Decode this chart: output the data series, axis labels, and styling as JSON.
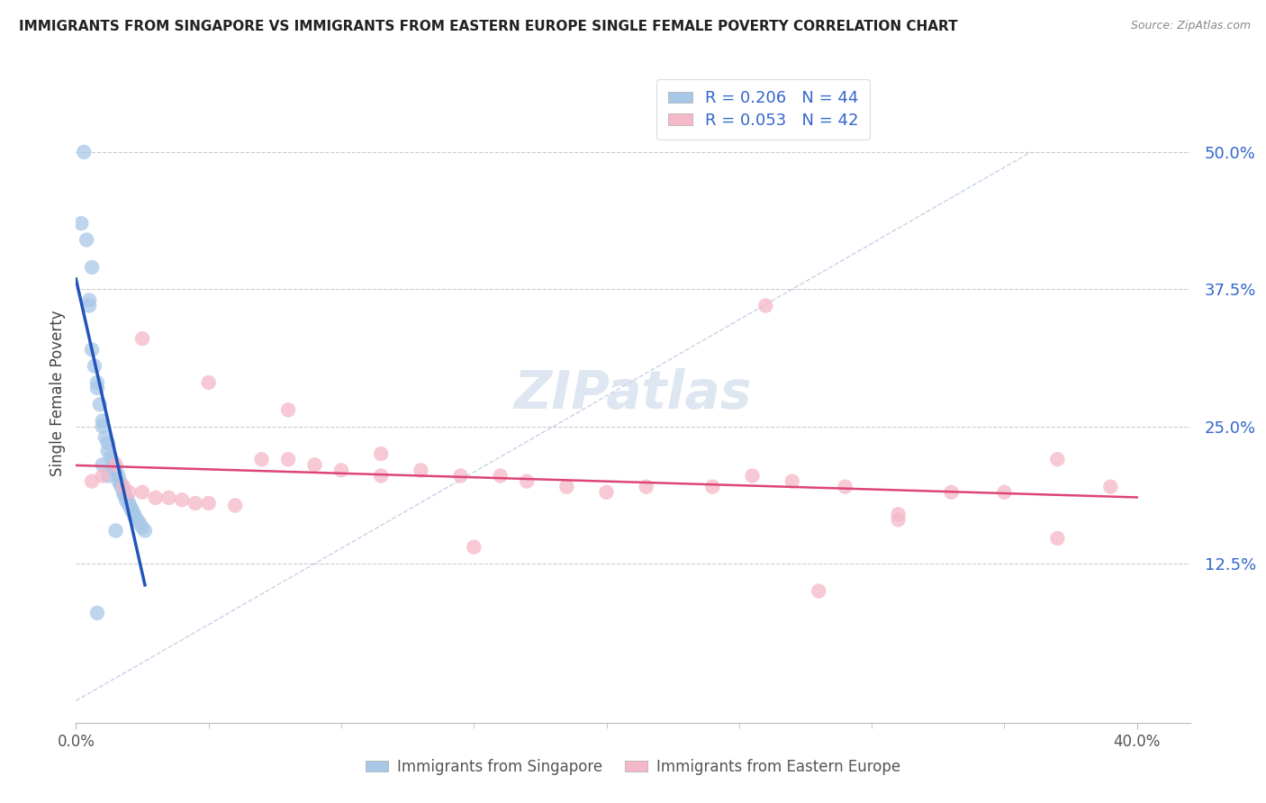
{
  "title": "IMMIGRANTS FROM SINGAPORE VS IMMIGRANTS FROM EASTERN EUROPE SINGLE FEMALE POVERTY CORRELATION CHART",
  "source": "Source: ZipAtlas.com",
  "ylabel": "Single Female Poverty",
  "ytick_labels": [
    "12.5%",
    "25.0%",
    "37.5%",
    "50.0%"
  ],
  "ytick_values": [
    0.125,
    0.25,
    0.375,
    0.5
  ],
  "xtick_labels": [
    "0.0%",
    "40.0%"
  ],
  "xtick_values": [
    0.0,
    0.4
  ],
  "xrange": [
    0.0,
    0.42
  ],
  "yrange": [
    -0.02,
    0.58
  ],
  "legend_line1": "R = 0.206   N = 44",
  "legend_line2": "R = 0.053   N = 42",
  "legend_label1": "Immigrants from Singapore",
  "legend_label2": "Immigrants from Eastern Europe",
  "color_singapore": "#a8c8e8",
  "color_eastern_europe": "#f5b8c8",
  "color_line_singapore": "#2255bb",
  "color_line_eastern_europe": "#dd4477",
  "color_diagonal": "#b8c8e0",
  "watermark_text": "ZIPatlas",
  "sg_x": [
    0.002,
    0.005,
    0.005,
    0.006,
    0.007,
    0.008,
    0.009,
    0.01,
    0.01,
    0.011,
    0.012,
    0.012,
    0.013,
    0.014,
    0.014,
    0.015,
    0.015,
    0.016,
    0.016,
    0.017,
    0.017,
    0.018,
    0.018,
    0.018,
    0.019,
    0.019,
    0.02,
    0.02,
    0.021,
    0.021,
    0.022,
    0.022,
    0.023,
    0.024,
    0.025,
    0.026,
    0.003,
    0.004,
    0.006,
    0.008,
    0.01,
    0.012,
    0.015,
    0.008
  ],
  "sg_y": [
    0.435,
    0.365,
    0.36,
    0.32,
    0.305,
    0.29,
    0.27,
    0.255,
    0.25,
    0.24,
    0.235,
    0.228,
    0.222,
    0.218,
    0.215,
    0.212,
    0.208,
    0.205,
    0.2,
    0.198,
    0.195,
    0.192,
    0.19,
    0.188,
    0.185,
    0.182,
    0.18,
    0.178,
    0.175,
    0.173,
    0.17,
    0.168,
    0.165,
    0.162,
    0.158,
    0.155,
    0.5,
    0.42,
    0.395,
    0.285,
    0.215,
    0.205,
    0.155,
    0.08
  ],
  "ee_x": [
    0.006,
    0.01,
    0.015,
    0.018,
    0.02,
    0.025,
    0.03,
    0.035,
    0.04,
    0.045,
    0.05,
    0.06,
    0.07,
    0.08,
    0.09,
    0.1,
    0.115,
    0.13,
    0.145,
    0.16,
    0.17,
    0.185,
    0.2,
    0.215,
    0.24,
    0.255,
    0.27,
    0.29,
    0.31,
    0.33,
    0.35,
    0.37,
    0.39,
    0.025,
    0.05,
    0.08,
    0.115,
    0.15,
    0.28,
    0.31,
    0.26,
    0.37
  ],
  "ee_y": [
    0.2,
    0.205,
    0.215,
    0.195,
    0.19,
    0.19,
    0.185,
    0.185,
    0.183,
    0.18,
    0.18,
    0.178,
    0.22,
    0.22,
    0.215,
    0.21,
    0.205,
    0.21,
    0.205,
    0.205,
    0.2,
    0.195,
    0.19,
    0.195,
    0.195,
    0.205,
    0.2,
    0.195,
    0.17,
    0.19,
    0.19,
    0.148,
    0.195,
    0.33,
    0.29,
    0.265,
    0.225,
    0.14,
    0.1,
    0.165,
    0.36,
    0.22
  ]
}
